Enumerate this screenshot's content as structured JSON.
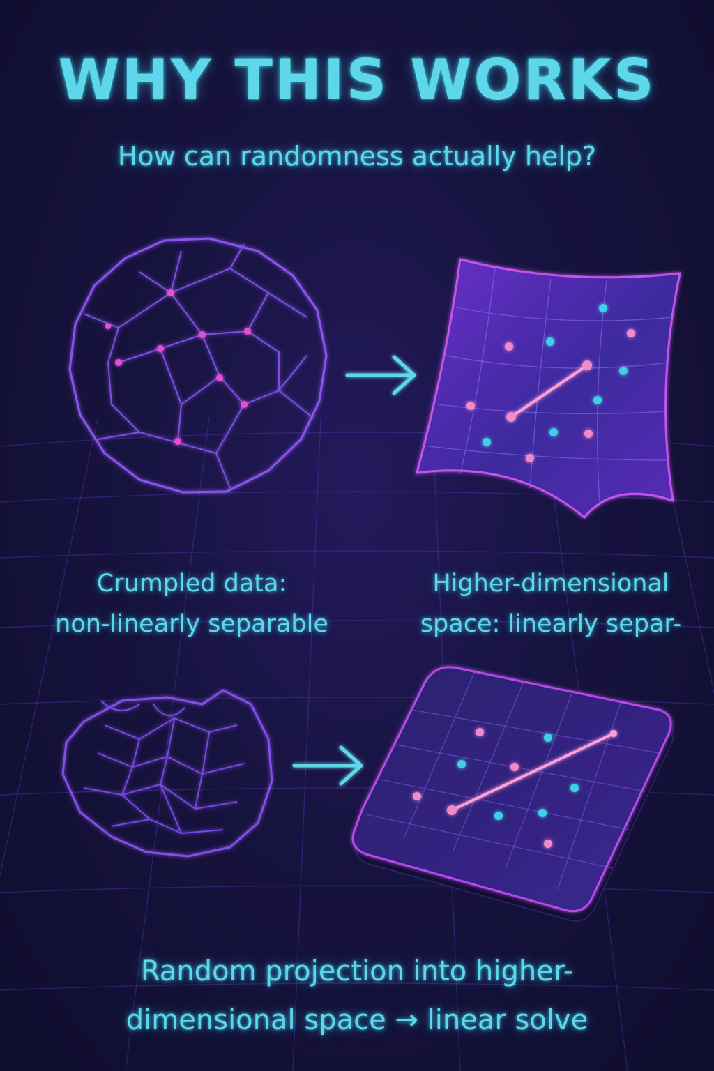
{
  "header": {
    "title": "WHY THIS WORKS",
    "subtitle": "How can randomness actually help?"
  },
  "captions": {
    "left_line1": "Crumpled data:",
    "left_line2": "non-linearly separable",
    "right_line1": "Higher-dimensional",
    "right_line2": "space: linearly separ-"
  },
  "footer": {
    "line1": "Random projection into higher-",
    "line2": "dimensional space → linear solve"
  },
  "colors": {
    "accent_cyan": "#5fd7ea",
    "accent_magenta": "#e44fd6",
    "wire_purple": "#7f4fe0",
    "background": "#17133f"
  },
  "icons": {
    "arrow": "arrow-right-icon",
    "crumpled": "crumpled-ball-icon",
    "sheet": "projected-sheet-icon"
  }
}
